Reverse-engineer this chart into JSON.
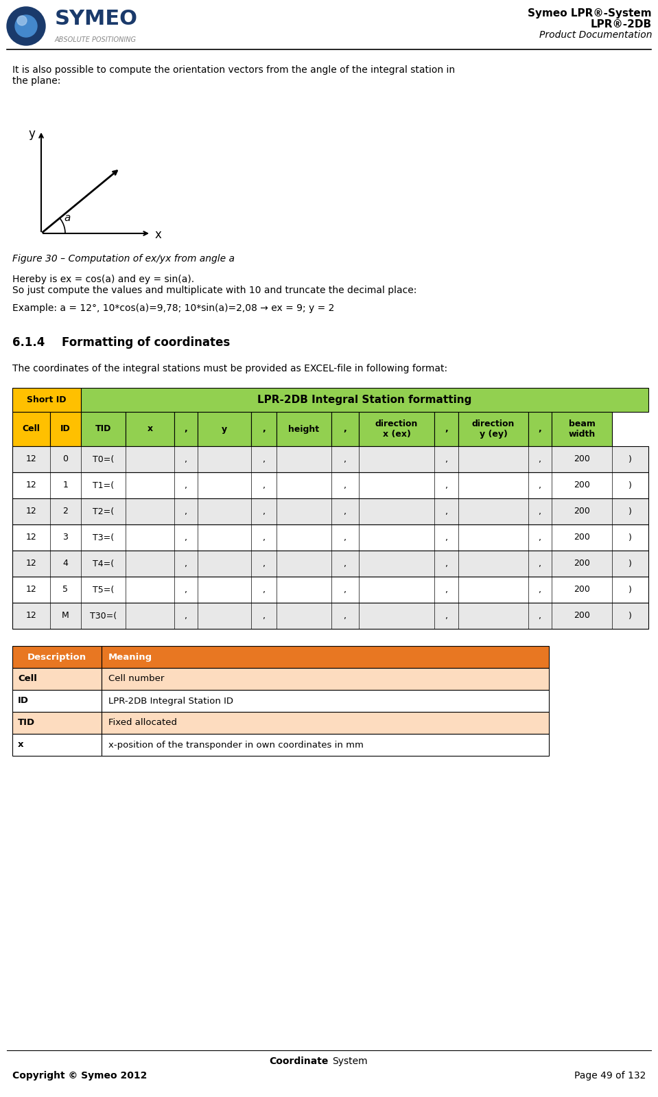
{
  "page_width": 9.59,
  "page_height": 15.98,
  "bg_color": "#ffffff",
  "header": {
    "logo_text": "SYMEO",
    "logo_sub": "ABSOLUTE POSITIONING",
    "right_line1": "Symeo LPR®-System",
    "right_line2": "LPR®-2DB",
    "right_line3": "Product Documentation"
  },
  "body_text1": "It is also possible to compute the orientation vectors from the angle of the integral station in\nthe plane:",
  "diagram_y_label": "y",
  "diagram_x_label": "x",
  "diagram_a_label": "a",
  "figure_caption": "Figure 30 – Computation of ex/yx from angle a",
  "body_text2": "Hereby is ex = cos(a) and ey = sin(a).\nSo just compute the values and multiplicate with 10 and truncate the decimal place:",
  "body_text3": "Example: a = 12°, 10*cos(a)=9,78; 10*sin(a)=2,08 → ex = 9; y = 2",
  "section_title": "6.1.4    Formatting of coordinates",
  "section_body": "The coordinates of the integral stations must be provided as EXCEL-file in following format:",
  "table1_header_row1": [
    "Short ID",
    "LPR-2DB Integral Station formatting"
  ],
  "table1_header_row2": [
    "Cell",
    "ID",
    "TID",
    "x",
    ",",
    "y",
    ",",
    "height",
    ",",
    "direction\nx (ex)",
    ",",
    "direction\ny (ey)",
    ",",
    "beam\nwidth"
  ],
  "table1_data_rows": [
    [
      "12",
      "0",
      "T0=(",
      "",
      ",",
      "",
      ",",
      "",
      ",",
      "",
      ",",
      "",
      ",",
      "200",
      ")"
    ],
    [
      "12",
      "1",
      "T1=(",
      "",
      ",",
      "",
      ",",
      "",
      ",",
      "",
      ",",
      "",
      ",",
      "200",
      ")"
    ],
    [
      "12",
      "2",
      "T2=(",
      "",
      ",",
      "",
      ",",
      "",
      ",",
      "",
      ",",
      "",
      ",",
      "200",
      ")"
    ],
    [
      "12",
      "3",
      "T3=(",
      "",
      ",",
      "",
      ",",
      "",
      ",",
      "",
      ",",
      "",
      ",",
      "200",
      ")"
    ],
    [
      "12",
      "4",
      "T4=(",
      "",
      ",",
      "",
      ",",
      "",
      ",",
      "",
      ",",
      "",
      ",",
      "200",
      ")"
    ],
    [
      "12",
      "5",
      "T5=(",
      "",
      ",",
      "",
      ",",
      "",
      ",",
      "",
      ",",
      "",
      ",",
      "200",
      ")"
    ],
    [
      "12",
      "M",
      "T30=(",
      "",
      ",",
      "",
      ",",
      "",
      ",",
      "",
      ",",
      "",
      ",",
      "200",
      ")"
    ]
  ],
  "table2_header": [
    "Description",
    "Meaning"
  ],
  "table2_rows": [
    [
      "Cell",
      "Cell number"
    ],
    [
      "ID",
      "LPR-2DB Integral Station ID"
    ],
    [
      "TID",
      "Fixed allocated"
    ],
    [
      "x",
      "x-position of the transponder in own coordinates in mm"
    ]
  ],
  "footer_center": "Coordinate System",
  "footer_left": "Copyright © Symeo 2012",
  "footer_right": "Page 49 of 132",
  "color_orange_header": "#E87722",
  "color_orange_light": "#F5A96B",
  "color_orange_lighter": "#FDDCBF",
  "color_green_header": "#77BC1F",
  "color_green_light": "#92D050",
  "color_yellow_header": "#FFC000",
  "color_gray_row": "#E8E8E8",
  "color_white": "#FFFFFF",
  "color_blue_dark": "#1F3864",
  "sep_line_color": "#000000"
}
